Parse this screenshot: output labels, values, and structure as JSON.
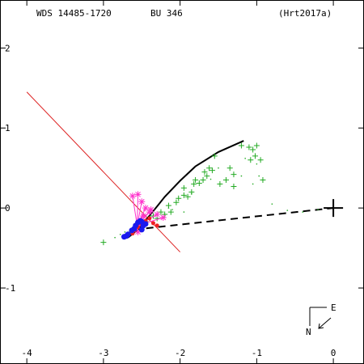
{
  "header": {
    "left": "WDS 14485-1720",
    "middle": "BU  346",
    "right": "(Hrt2017a)"
  },
  "compass": {
    "east": "E",
    "north": "N"
  },
  "chart_data": {
    "type": "scatter",
    "xlim": [
      -4.35,
      0.4
    ],
    "ylim": [
      -1.95,
      2.6
    ],
    "x_ticks": [
      {
        "value": -4,
        "label": "-4"
      },
      {
        "value": -3,
        "label": "-3"
      },
      {
        "value": -2,
        "label": "-2"
      },
      {
        "value": -1,
        "label": "-1"
      },
      {
        "value": 0,
        "label": "0"
      }
    ],
    "y_ticks": [
      {
        "value": 2,
        "label": "2"
      },
      {
        "value": 1,
        "label": "1"
      },
      {
        "value": 0,
        "label": "0"
      },
      {
        "value": -1,
        "label": "-1"
      }
    ],
    "primary": {
      "x": 0,
      "y": 0
    },
    "colors": {
      "micrometry": "#22aa22",
      "dots": "#22aa22",
      "speckle": "#ff33cc",
      "interferometry": "#1a1aee",
      "red_points": "#ee2222",
      "node_line": "#dd2222",
      "orbit": "#000000"
    },
    "node_line": [
      [
        -4.0,
        1.45
      ],
      [
        -2.0,
        -0.55
      ]
    ],
    "orbit_arc": [
      [
        -2.68,
        -0.37
      ],
      [
        -2.55,
        -0.27
      ],
      [
        -2.42,
        -0.12
      ],
      [
        -2.3,
        0.02
      ],
      [
        -2.2,
        0.14
      ],
      [
        -2.0,
        0.34
      ],
      [
        -1.8,
        0.52
      ],
      [
        -1.5,
        0.7
      ],
      [
        -1.17,
        0.84
      ]
    ],
    "periastron_line": [
      [
        -2.6,
        -0.27
      ],
      [
        0.0,
        0.0
      ]
    ],
    "micrometry": [
      [
        -3.0,
        -0.43
      ],
      [
        -2.65,
        -0.3
      ],
      [
        -2.55,
        -0.22
      ],
      [
        -2.45,
        -0.17
      ],
      [
        -2.35,
        -0.1
      ],
      [
        -2.3,
        -0.13
      ],
      [
        -2.25,
        -0.05
      ],
      [
        -2.2,
        -0.08
      ],
      [
        -2.15,
        0.03
      ],
      [
        -2.12,
        -0.05
      ],
      [
        -2.05,
        0.07
      ],
      [
        -2.02,
        0.12
      ],
      [
        -1.95,
        0.16
      ],
      [
        -1.9,
        0.14
      ],
      [
        -1.95,
        0.25
      ],
      [
        -1.85,
        0.2
      ],
      [
        -1.82,
        0.3
      ],
      [
        -1.75,
        0.31
      ],
      [
        -1.7,
        0.35
      ],
      [
        -1.68,
        0.45
      ],
      [
        -1.62,
        0.5
      ],
      [
        -1.58,
        0.47
      ],
      [
        -1.55,
        0.65
      ],
      [
        -1.48,
        0.3
      ],
      [
        -1.4,
        0.35
      ],
      [
        -1.3,
        0.42
      ],
      [
        -1.35,
        0.5
      ],
      [
        -1.3,
        0.27
      ],
      [
        -1.2,
        0.78
      ],
      [
        -1.1,
        0.76
      ],
      [
        -1.05,
        0.73
      ],
      [
        -1.02,
        0.65
      ],
      [
        -1.0,
        0.78
      ],
      [
        -0.95,
        0.6
      ],
      [
        -0.92,
        0.35
      ],
      [
        -1.08,
        0.6
      ],
      [
        -1.65,
        0.4
      ],
      [
        -1.8,
        0.35
      ]
    ],
    "dots": [
      [
        -2.85,
        -0.37
      ],
      [
        -2.78,
        -0.33
      ],
      [
        -2.72,
        -0.3
      ],
      [
        -2.1,
        -0.02
      ],
      [
        -1.85,
        0.18
      ],
      [
        -1.6,
        0.36
      ],
      [
        -1.2,
        0.4
      ],
      [
        -1.15,
        0.62
      ],
      [
        -1.0,
        0.55
      ],
      [
        -0.97,
        0.4
      ],
      [
        -1.05,
        0.3
      ],
      [
        -1.5,
        0.5
      ],
      [
        -0.8,
        0.05
      ],
      [
        -0.6,
        -0.03
      ],
      [
        -0.4,
        -0.05
      ],
      [
        -0.2,
        -0.02
      ],
      [
        -1.95,
        -0.05
      ],
      [
        -2.15,
        0.0
      ]
    ],
    "speckle": [
      [
        -2.62,
        0.15
      ],
      [
        -2.55,
        0.17
      ],
      [
        -2.5,
        0.08
      ],
      [
        -2.45,
        0.0
      ],
      [
        -2.4,
        -0.05
      ],
      [
        -2.38,
        -0.02
      ],
      [
        -2.3,
        -0.08
      ],
      [
        -2.22,
        -0.12
      ],
      [
        -2.48,
        -0.1
      ],
      [
        -2.55,
        -0.2
      ],
      [
        -2.58,
        -0.25
      ],
      [
        -2.55,
        -0.3
      ]
    ],
    "interferometry": [
      [
        -2.73,
        -0.36
      ],
      [
        -2.7,
        -0.35
      ],
      [
        -2.68,
        -0.33
      ],
      [
        -2.63,
        -0.28
      ],
      [
        -2.6,
        -0.26
      ],
      [
        -2.58,
        -0.22
      ],
      [
        -2.55,
        -0.18
      ],
      [
        -2.52,
        -0.16
      ],
      [
        -2.5,
        -0.17
      ],
      [
        -2.48,
        -0.22
      ],
      [
        -2.5,
        -0.27
      ],
      [
        -2.45,
        -0.2
      ]
    ],
    "red_points": [
      [
        -2.6,
        -0.28
      ],
      [
        -2.55,
        -0.24
      ],
      [
        -2.5,
        -0.2
      ],
      [
        -2.45,
        -0.16
      ],
      [
        -2.4,
        -0.13
      ],
      [
        -2.35,
        -0.19
      ],
      [
        -2.3,
        -0.22
      ],
      [
        -2.62,
        -0.32
      ]
    ]
  }
}
